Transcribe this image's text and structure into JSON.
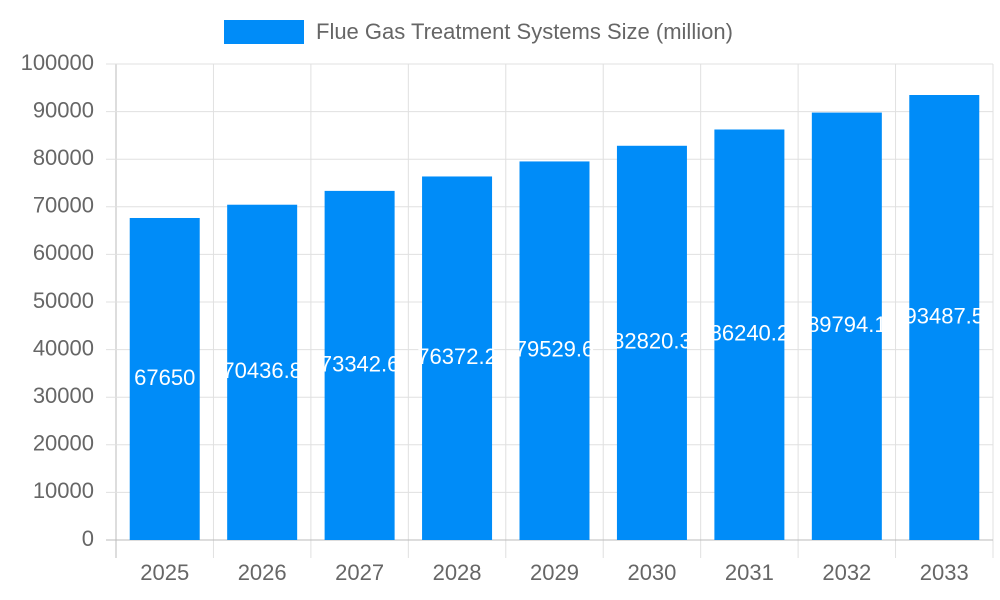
{
  "chart_data": {
    "type": "bar",
    "legend": "Flue Gas Treatment Systems Size (million)",
    "categories": [
      "2025",
      "2026",
      "2027",
      "2028",
      "2029",
      "2030",
      "2031",
      "2032",
      "2033"
    ],
    "values": [
      67650,
      70436.8,
      73342.6,
      76372.2,
      79529.6,
      82820.3,
      86240.2,
      89794.1,
      93487.5
    ],
    "color": "#008cf8",
    "ylim": [
      0,
      100000
    ],
    "yticks": [
      0,
      10000,
      20000,
      30000,
      40000,
      50000,
      60000,
      70000,
      80000,
      90000,
      100000
    ],
    "grid": true
  }
}
